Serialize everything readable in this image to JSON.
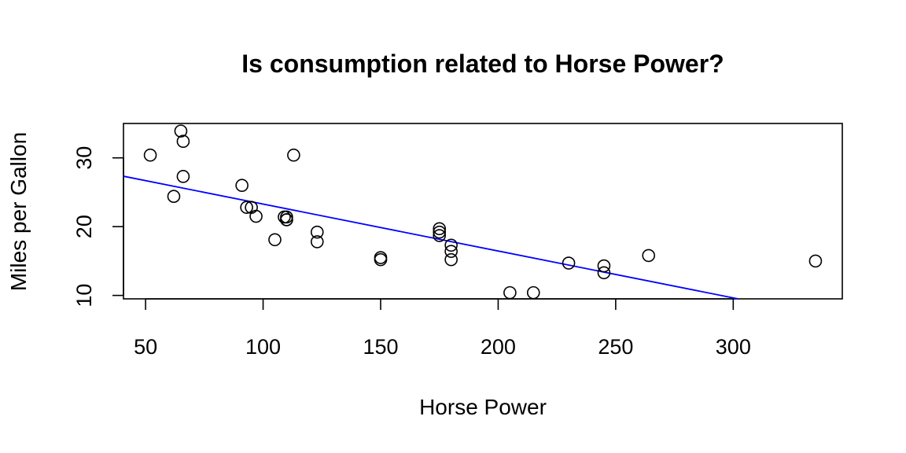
{
  "chart_data": {
    "type": "scatter",
    "title": "Is consumption related to Horse Power?",
    "xlabel": "Horse Power",
    "ylabel": "Miles per Gallon",
    "xlim": [
      40.6,
      346.4
    ],
    "ylim": [
      9.5,
      35.0
    ],
    "xticks": [
      50,
      100,
      150,
      200,
      250,
      300
    ],
    "yticks": [
      10,
      20,
      30
    ],
    "grid": false,
    "points": [
      {
        "x": 110,
        "y": 21.0
      },
      {
        "x": 110,
        "y": 21.0
      },
      {
        "x": 93,
        "y": 22.8
      },
      {
        "x": 110,
        "y": 21.4
      },
      {
        "x": 175,
        "y": 18.7
      },
      {
        "x": 105,
        "y": 18.1
      },
      {
        "x": 245,
        "y": 14.3
      },
      {
        "x": 62,
        "y": 24.4
      },
      {
        "x": 95,
        "y": 22.8
      },
      {
        "x": 123,
        "y": 19.2
      },
      {
        "x": 123,
        "y": 17.8
      },
      {
        "x": 180,
        "y": 16.4
      },
      {
        "x": 180,
        "y": 17.3
      },
      {
        "x": 180,
        "y": 15.2
      },
      {
        "x": 205,
        "y": 10.4
      },
      {
        "x": 215,
        "y": 10.4
      },
      {
        "x": 230,
        "y": 14.7
      },
      {
        "x": 66,
        "y": 32.4
      },
      {
        "x": 52,
        "y": 30.4
      },
      {
        "x": 65,
        "y": 33.9
      },
      {
        "x": 97,
        "y": 21.5
      },
      {
        "x": 150,
        "y": 15.5
      },
      {
        "x": 150,
        "y": 15.2
      },
      {
        "x": 245,
        "y": 13.3
      },
      {
        "x": 175,
        "y": 19.2
      },
      {
        "x": 66,
        "y": 27.3
      },
      {
        "x": 91,
        "y": 26.0
      },
      {
        "x": 113,
        "y": 30.4
      },
      {
        "x": 264,
        "y": 15.8
      },
      {
        "x": 175,
        "y": 19.7
      },
      {
        "x": 335,
        "y": 15.0
      },
      {
        "x": 109,
        "y": 21.4
      }
    ],
    "trendline": {
      "intercept": 30.1,
      "slope": -0.0682,
      "color": "#0000ff"
    },
    "point_color": "#000000"
  }
}
